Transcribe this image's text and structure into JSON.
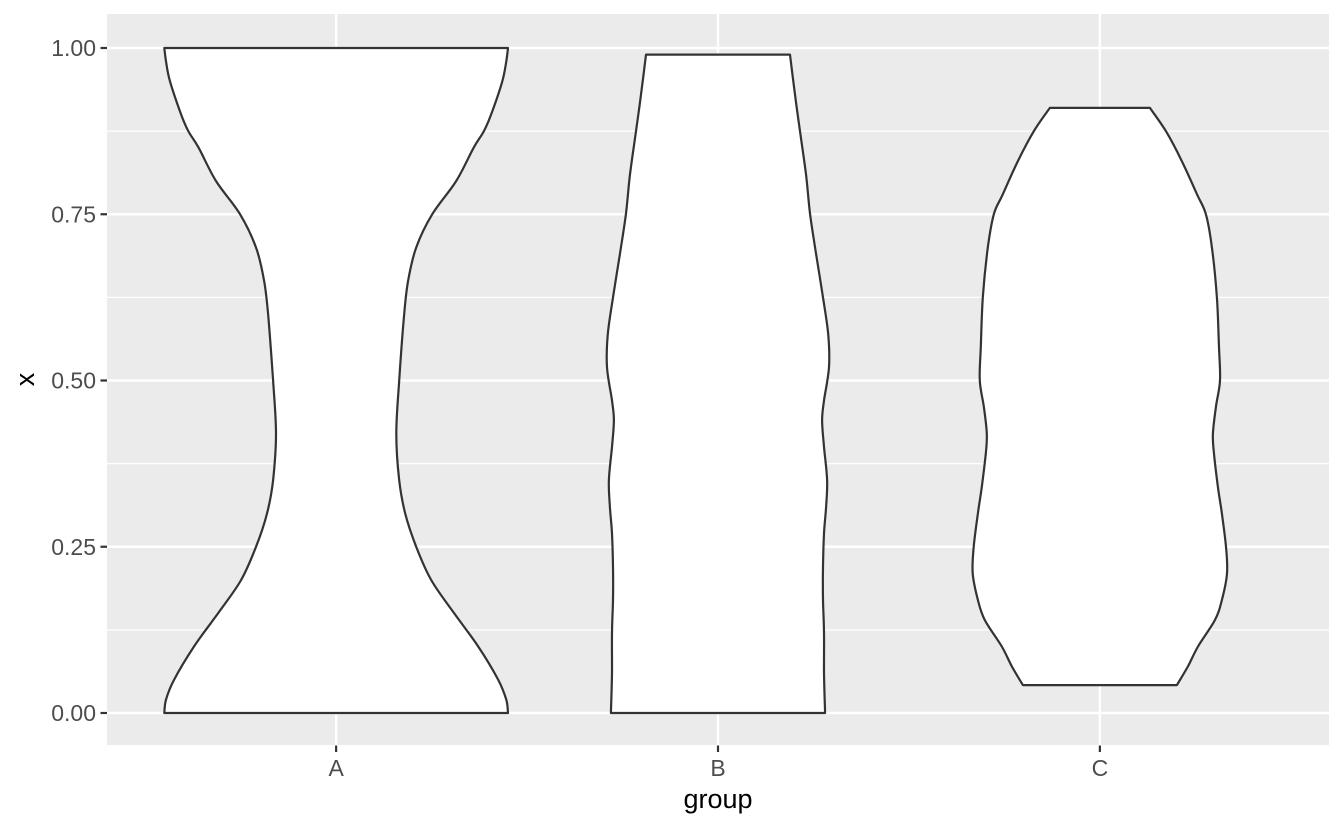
{
  "figure": {
    "background": "#FFFFFF",
    "title": ""
  },
  "chart_data": {
    "type": "violin",
    "title": "",
    "xlabel": "group",
    "ylabel": "x",
    "categories": [
      "A",
      "B",
      "C"
    ],
    "x_axis": {
      "label": "group",
      "tick_labels": [
        "A",
        "B",
        "C"
      ]
    },
    "y_axis": {
      "label": "x",
      "ticks": [
        0,
        0.25,
        0.5,
        0.75,
        1
      ],
      "tick_labels": [
        "0.00",
        "0.25",
        "0.50",
        "0.75",
        "1.00"
      ],
      "minor_ticks": [
        0.125,
        0.375,
        0.625,
        0.875
      ],
      "range_shown": [
        -0.05,
        1.05
      ]
    },
    "legend": "none",
    "grid": "horizontal major+minor white lines and vertical white major lines at each category, on grey panel",
    "series": [
      {
        "group": "A",
        "y_min": 0.0,
        "y_max": 1.0,
        "flat_top": true,
        "flat_bottom": true,
        "profile_note": "pairs of [y_value, halfwidth_fraction] where 1.0 = maximum allotted half width (0.45 x category spacing)",
        "profile": [
          [
            0.0,
            1.0
          ],
          [
            0.02,
            0.99
          ],
          [
            0.05,
            0.943
          ],
          [
            0.1,
            0.827
          ],
          [
            0.15,
            0.687
          ],
          [
            0.2,
            0.553
          ],
          [
            0.25,
            0.466
          ],
          [
            0.3,
            0.402
          ],
          [
            0.35,
            0.367
          ],
          [
            0.42,
            0.35
          ],
          [
            0.5,
            0.367
          ],
          [
            0.6,
            0.396
          ],
          [
            0.65,
            0.419
          ],
          [
            0.7,
            0.466
          ],
          [
            0.75,
            0.559
          ],
          [
            0.8,
            0.699
          ],
          [
            0.85,
            0.8
          ],
          [
            0.875,
            0.86
          ],
          [
            0.9,
            0.902
          ],
          [
            0.95,
            0.967
          ],
          [
            0.98,
            0.99
          ],
          [
            1.0,
            1.0
          ]
        ]
      },
      {
        "group": "B",
        "y_min": 0.0,
        "y_max": 0.99,
        "flat_top": true,
        "flat_bottom": true,
        "profile": [
          [
            0.0,
            0.623
          ],
          [
            0.06,
            0.617
          ],
          [
            0.12,
            0.617
          ],
          [
            0.17,
            0.611
          ],
          [
            0.22,
            0.611
          ],
          [
            0.27,
            0.617
          ],
          [
            0.31,
            0.629
          ],
          [
            0.35,
            0.635
          ],
          [
            0.4,
            0.617
          ],
          [
            0.44,
            0.606
          ],
          [
            0.47,
            0.617
          ],
          [
            0.52,
            0.646
          ],
          [
            0.57,
            0.641
          ],
          [
            0.625,
            0.611
          ],
          [
            0.69,
            0.571
          ],
          [
            0.75,
            0.536
          ],
          [
            0.81,
            0.512
          ],
          [
            0.875,
            0.477
          ],
          [
            0.93,
            0.448
          ],
          [
            0.99,
            0.419
          ]
        ]
      },
      {
        "group": "C",
        "y_min": 0.042,
        "y_max": 0.91,
        "flat_top": true,
        "flat_bottom": true,
        "profile": [
          [
            0.042,
            0.448
          ],
          [
            0.07,
            0.512
          ],
          [
            0.1,
            0.571
          ],
          [
            0.14,
            0.67
          ],
          [
            0.17,
            0.71
          ],
          [
            0.21,
            0.74
          ],
          [
            0.25,
            0.734
          ],
          [
            0.3,
            0.71
          ],
          [
            0.34,
            0.687
          ],
          [
            0.39,
            0.664
          ],
          [
            0.42,
            0.658
          ],
          [
            0.46,
            0.675
          ],
          [
            0.5,
            0.699
          ],
          [
            0.55,
            0.693
          ],
          [
            0.625,
            0.681
          ],
          [
            0.7,
            0.652
          ],
          [
            0.75,
            0.617
          ],
          [
            0.78,
            0.565
          ],
          [
            0.83,
            0.477
          ],
          [
            0.875,
            0.384
          ],
          [
            0.91,
            0.291
          ]
        ]
      }
    ],
    "style": {
      "panel_bg": "#EBEBEB",
      "grid_color": "#FFFFFF",
      "violin_fill": "#FFFFFF",
      "violin_stroke": "#333333",
      "tick_label_color": "#4D4D4D",
      "axis_title_color": "#000000",
      "tick_mark_color": "#333333"
    }
  }
}
